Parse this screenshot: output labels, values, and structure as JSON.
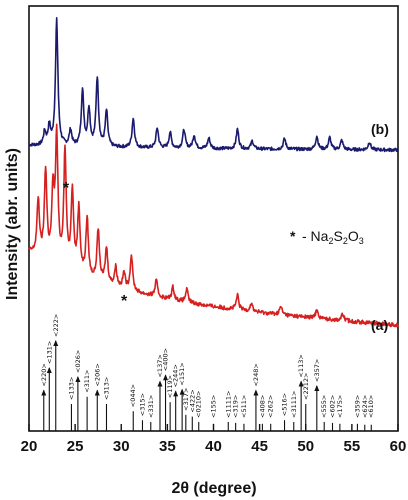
{
  "chart_data": {
    "type": "line",
    "xlabel": "2θ (degree)",
    "ylabel": "Intensity (abr. units)",
    "xlim": [
      20,
      60
    ],
    "xticks": [
      20,
      25,
      30,
      35,
      40,
      45,
      50,
      55,
      60
    ],
    "yticks_shown": false,
    "legend": {
      "marker": "*",
      "text": "- Na2S2O3"
    },
    "series": [
      {
        "name": "(b)",
        "color": "#1a1a6e",
        "peaks": [
          {
            "x": 21.7,
            "h": 0.1
          },
          {
            "x": 22.2,
            "h": 0.14
          },
          {
            "x": 23.0,
            "h": 0.95
          },
          {
            "x": 24.5,
            "h": 0.12
          },
          {
            "x": 25.8,
            "h": 0.42
          },
          {
            "x": 26.5,
            "h": 0.28
          },
          {
            "x": 27.4,
            "h": 0.52
          },
          {
            "x": 28.4,
            "h": 0.27
          },
          {
            "x": 31.3,
            "h": 0.22
          },
          {
            "x": 33.9,
            "h": 0.15
          },
          {
            "x": 35.3,
            "h": 0.12
          },
          {
            "x": 36.8,
            "h": 0.14
          },
          {
            "x": 37.9,
            "h": 0.1
          },
          {
            "x": 39.5,
            "h": 0.08
          },
          {
            "x": 42.6,
            "h": 0.15
          },
          {
            "x": 44.2,
            "h": 0.06
          },
          {
            "x": 47.7,
            "h": 0.08
          },
          {
            "x": 51.2,
            "h": 0.1
          },
          {
            "x": 52.6,
            "h": 0.09
          },
          {
            "x": 53.9,
            "h": 0.07
          },
          {
            "x": 56.9,
            "h": 0.06
          }
        ],
        "baseline_start": 0.02,
        "baseline_end": 0.0
      },
      {
        "name": "(a)",
        "color": "#d62020",
        "peaks": [
          {
            "x": 21.0,
            "h": 0.35
          },
          {
            "x": 21.8,
            "h": 0.55
          },
          {
            "x": 22.6,
            "h": 0.42
          },
          {
            "x": 23.0,
            "h": 0.78
          },
          {
            "x": 23.9,
            "h": 0.72
          },
          {
            "x": 24.7,
            "h": 0.5
          },
          {
            "x": 25.4,
            "h": 0.4
          },
          {
            "x": 26.3,
            "h": 0.36
          },
          {
            "x": 27.5,
            "h": 0.32
          },
          {
            "x": 28.4,
            "h": 0.22
          },
          {
            "x": 29.4,
            "h": 0.12
          },
          {
            "x": 30.3,
            "h": 0.1
          },
          {
            "x": 31.1,
            "h": 0.22
          },
          {
            "x": 33.8,
            "h": 0.1
          },
          {
            "x": 35.6,
            "h": 0.08
          },
          {
            "x": 37.1,
            "h": 0.08
          },
          {
            "x": 42.6,
            "h": 0.09
          },
          {
            "x": 44.1,
            "h": 0.05
          },
          {
            "x": 47.3,
            "h": 0.05
          },
          {
            "x": 51.2,
            "h": 0.05
          },
          {
            "x": 54.0,
            "h": 0.04
          }
        ],
        "baseline_start": 0.3,
        "baseline_end": 0.0,
        "star_markers": [
          24.0,
          30.3
        ]
      }
    ],
    "reference_lines": [
      {
        "x": 21.6,
        "label": "<220>",
        "h": 0.45
      },
      {
        "x": 22.2,
        "label": "<131>",
        "h": 0.7
      },
      {
        "x": 22.9,
        "label": "<222>",
        "h": 1.0
      },
      {
        "x": 24.6,
        "label": "<133>",
        "h": 0.3
      },
      {
        "x": 25.3,
        "label": "<026>",
        "h": 0.6
      },
      {
        "x": 26.3,
        "label": "<311>",
        "h": 0.38
      },
      {
        "x": 27.4,
        "label": "<206>",
        "h": 0.45
      },
      {
        "x": 28.4,
        "label": "<313>",
        "h": 0.3
      },
      {
        "x": 31.3,
        "label": "<044>",
        "h": 0.22
      },
      {
        "x": 32.3,
        "label": "<315>",
        "h": 0.12
      },
      {
        "x": 33.2,
        "label": "<331>",
        "h": 0.1
      },
      {
        "x": 34.2,
        "label": "<137>",
        "h": 0.55
      },
      {
        "x": 34.8,
        "label": "<400>",
        "h": 0.62
      },
      {
        "x": 35.3,
        "label": "<119>",
        "h": 0.32
      },
      {
        "x": 35.9,
        "label": "<244>",
        "h": 0.44
      },
      {
        "x": 36.6,
        "label": "<151>",
        "h": 0.46
      },
      {
        "x": 37.0,
        "label": "<317>",
        "h": 0.18
      },
      {
        "x": 37.7,
        "label": "<422>",
        "h": 0.16
      },
      {
        "x": 38.4,
        "label": "<0210>",
        "h": 0.1
      },
      {
        "x": 40.0,
        "label": "<155>",
        "h": 0.08
      },
      {
        "x": 41.6,
        "label": "<1111>",
        "h": 0.1
      },
      {
        "x": 42.4,
        "label": "<319>",
        "h": 0.09
      },
      {
        "x": 43.3,
        "label": "<511>",
        "h": 0.08
      },
      {
        "x": 44.6,
        "label": "<248>",
        "h": 0.45
      },
      {
        "x": 45.3,
        "label": "<408>",
        "h": 0.08
      },
      {
        "x": 46.2,
        "label": "<262>",
        "h": 0.08
      },
      {
        "x": 47.7,
        "label": "<516>",
        "h": 0.12
      },
      {
        "x": 48.7,
        "label": "<3111>",
        "h": 0.1
      },
      {
        "x": 49.5,
        "label": "<113>",
        "h": 0.55
      },
      {
        "x": 50.0,
        "label": "<2212>",
        "h": 0.3
      },
      {
        "x": 51.2,
        "label": "<357>",
        "h": 0.5
      },
      {
        "x": 52.0,
        "label": "<555>",
        "h": 0.1
      },
      {
        "x": 52.9,
        "label": "<602>",
        "h": 0.09
      },
      {
        "x": 53.7,
        "label": "<175>",
        "h": 0.08
      },
      {
        "x": 55.6,
        "label": "<359>",
        "h": 0.08
      },
      {
        "x": 56.4,
        "label": "<624>",
        "h": 0.07
      },
      {
        "x": 57.1,
        "label": "<610>",
        "h": 0.07
      }
    ]
  }
}
